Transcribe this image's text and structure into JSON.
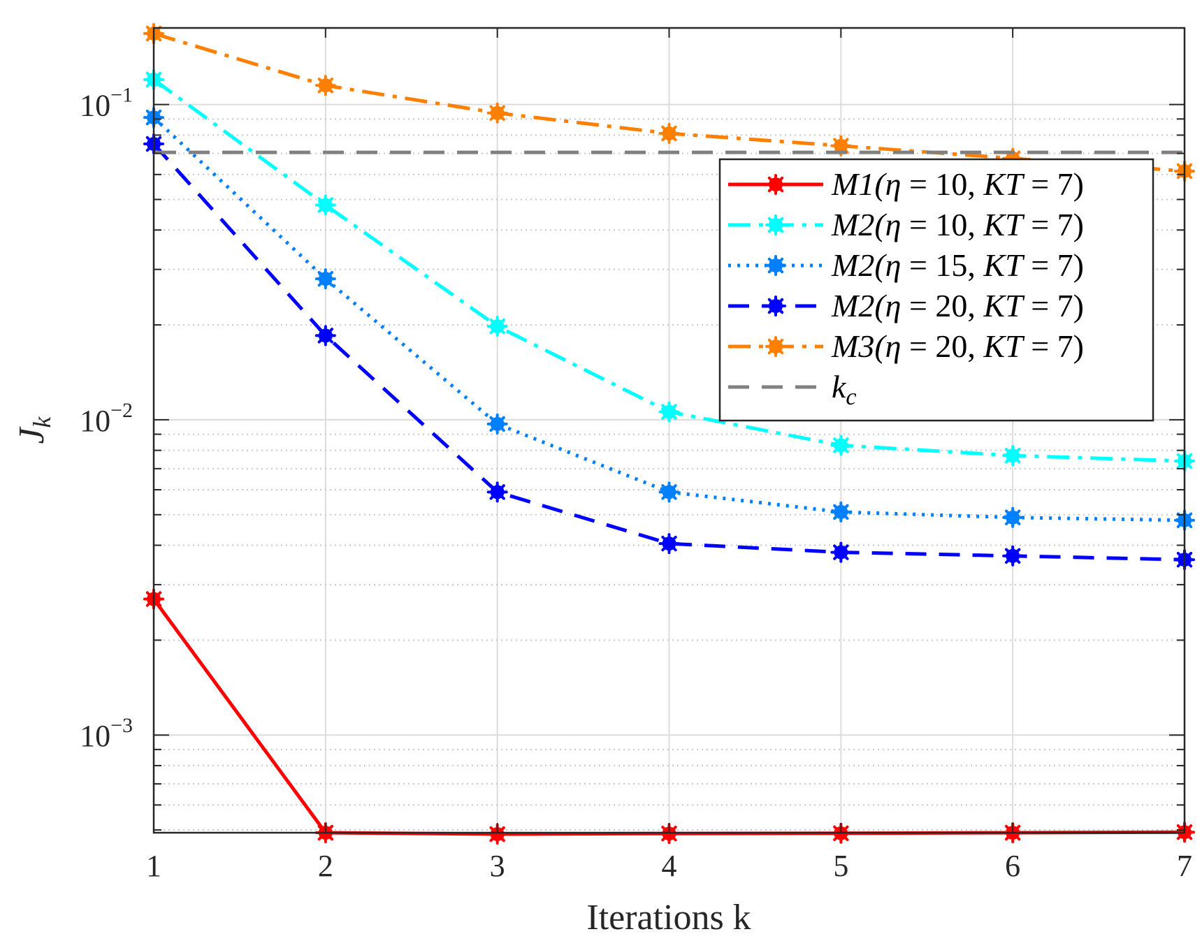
{
  "chart_data": {
    "type": "line",
    "title": "",
    "xlabel": "Iterations k",
    "ylabel": "J_k",
    "xlim": [
      1,
      7
    ],
    "ylim": [
      0.00049,
      0.175
    ],
    "yscale": "log",
    "grid": true,
    "legend_position": "top-right",
    "x": [
      1,
      2,
      3,
      4,
      5,
      6,
      7
    ],
    "x_tick_labels": [
      "1",
      "2",
      "3",
      "4",
      "5",
      "6",
      "7"
    ],
    "y_ticks": [
      0.001,
      0.01,
      0.1
    ],
    "y_tick_labels": [
      {
        "base": "10",
        "exp": "-3"
      },
      {
        "base": "10",
        "exp": "-2"
      },
      {
        "base": "10",
        "exp": "-1"
      }
    ],
    "series": [
      {
        "name": "M1(η = 10, KT = 7)",
        "color": "#ff0000",
        "dash": "solid",
        "marker": "asterisk",
        "values": [
          0.0027,
          0.00049,
          0.000485,
          0.000487,
          0.000488,
          0.00049,
          0.000492
        ]
      },
      {
        "name": "M2(η = 10, KT = 7)",
        "color": "#00ffff",
        "dash": "dashdot",
        "marker": "asterisk",
        "values": [
          0.12,
          0.048,
          0.0198,
          0.0106,
          0.0083,
          0.0077,
          0.0074
        ]
      },
      {
        "name": "M2(η = 15, KT = 7)",
        "color": "#0080ff",
        "dash": "dotted",
        "marker": "asterisk",
        "values": [
          0.091,
          0.028,
          0.0097,
          0.0059,
          0.0051,
          0.0049,
          0.0048
        ]
      },
      {
        "name": "M2(η = 20, KT = 7)",
        "color": "#0000ff",
        "dash": "dashed",
        "marker": "asterisk",
        "values": [
          0.075,
          0.0185,
          0.0059,
          0.00405,
          0.0038,
          0.0037,
          0.0036
        ]
      },
      {
        "name": "M3(η = 20, KT = 7)",
        "color": "#ff8000",
        "dash": "dashdot",
        "marker": "asterisk",
        "values": [
          0.168,
          0.115,
          0.094,
          0.081,
          0.074,
          0.0675,
          0.0615
        ]
      },
      {
        "name": "k_c",
        "color": "#808080",
        "dash": "dashed",
        "marker": "none",
        "values": [
          0.0705,
          0.0705,
          0.0705,
          0.0705,
          0.0705,
          0.0705,
          0.0705
        ]
      }
    ],
    "legend_labels": [
      {
        "pre": "M1(",
        "greek": "η",
        "mid": " = 10, ",
        "kt": "KT",
        "post": " = 7)"
      },
      {
        "pre": "M2(",
        "greek": "η",
        "mid": " = 10, ",
        "kt": "KT",
        "post": " = 7)"
      },
      {
        "pre": "M2(",
        "greek": "η",
        "mid": " = 15, ",
        "kt": "KT",
        "post": " = 7)"
      },
      {
        "pre": "M2(",
        "greek": "η",
        "mid": " = 20, ",
        "kt": "KT",
        "post": " = 7)"
      },
      {
        "pre": "M3(",
        "greek": "η",
        "mid": " = 20, ",
        "kt": "KT",
        "post": " = 7)"
      },
      {
        "sym": "k",
        "sub": "c"
      }
    ],
    "ylabel_parts": {
      "sym": "J",
      "sub": "k"
    }
  }
}
